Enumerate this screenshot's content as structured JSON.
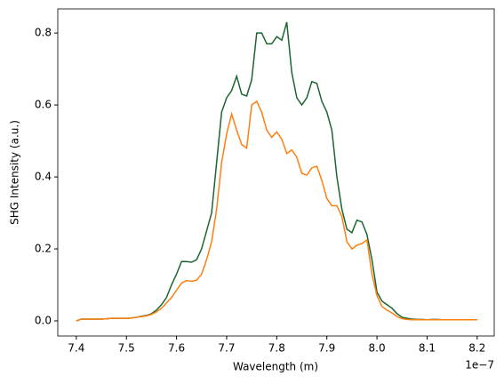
{
  "chart_data": {
    "type": "line",
    "x_label": "Wavelength (m)",
    "y_label": "SHG Intensity (a.u.)",
    "x_offset_label": "1e−7",
    "x": [
      7.4,
      7.41,
      7.42,
      7.43,
      7.44,
      7.45,
      7.46,
      7.47,
      7.48,
      7.49,
      7.5,
      7.51,
      7.52,
      7.53,
      7.54,
      7.55,
      7.56,
      7.57,
      7.58,
      7.59,
      7.6,
      7.61,
      7.62,
      7.63,
      7.64,
      7.65,
      7.66,
      7.67,
      7.68,
      7.69,
      7.7,
      7.71,
      7.72,
      7.73,
      7.74,
      7.75,
      7.76,
      7.77,
      7.78,
      7.79,
      7.8,
      7.81,
      7.82,
      7.83,
      7.84,
      7.85,
      7.86,
      7.87,
      7.88,
      7.89,
      7.9,
      7.91,
      7.92,
      7.93,
      7.94,
      7.95,
      7.96,
      7.97,
      7.98,
      7.99,
      8.0,
      8.01,
      8.02,
      8.03,
      8.04,
      8.05,
      8.06,
      8.07,
      8.08,
      8.09,
      8.1,
      8.11,
      8.12,
      8.13,
      8.14,
      8.15,
      8.16,
      8.17,
      8.18,
      8.19,
      8.2
    ],
    "series": [
      {
        "color": "#1b6630",
        "values": [
          0,
          0.005,
          0.005,
          0.005,
          0.005,
          0.005,
          0.006,
          0.007,
          0.007,
          0.007,
          0.007,
          0.008,
          0.01,
          0.013,
          0.015,
          0.02,
          0.03,
          0.045,
          0.065,
          0.1,
          0.13,
          0.165,
          0.165,
          0.163,
          0.17,
          0.2,
          0.25,
          0.3,
          0.44,
          0.58,
          0.62,
          0.64,
          0.68,
          0.63,
          0.625,
          0.67,
          0.8,
          0.8,
          0.77,
          0.77,
          0.79,
          0.78,
          0.83,
          0.69,
          0.62,
          0.6,
          0.62,
          0.665,
          0.66,
          0.61,
          0.58,
          0.53,
          0.4,
          0.31,
          0.255,
          0.245,
          0.28,
          0.275,
          0.24,
          0.17,
          0.08,
          0.055,
          0.045,
          0.035,
          0.02,
          0.01,
          0.007,
          0.005,
          0.004,
          0.004,
          0.003,
          0.004,
          0.004,
          0.003,
          0.003,
          0.003,
          0.003,
          0.003,
          0.003,
          0.003,
          0.003
        ]
      },
      {
        "color": "#ff7f0e",
        "values": [
          0,
          0.005,
          0.005,
          0.005,
          0.005,
          0.005,
          0.006,
          0.007,
          0.007,
          0.007,
          0.007,
          0.008,
          0.01,
          0.012,
          0.014,
          0.018,
          0.025,
          0.035,
          0.05,
          0.065,
          0.085,
          0.105,
          0.112,
          0.11,
          0.113,
          0.13,
          0.17,
          0.22,
          0.31,
          0.44,
          0.52,
          0.575,
          0.53,
          0.49,
          0.48,
          0.6,
          0.61,
          0.58,
          0.53,
          0.51,
          0.525,
          0.505,
          0.465,
          0.475,
          0.455,
          0.41,
          0.405,
          0.425,
          0.43,
          0.39,
          0.34,
          0.32,
          0.32,
          0.29,
          0.22,
          0.2,
          0.21,
          0.215,
          0.225,
          0.13,
          0.07,
          0.04,
          0.03,
          0.022,
          0.012,
          0.006,
          0.004,
          0.003,
          0.003,
          0.003,
          0.003,
          0.003,
          0.003,
          0.003,
          0.003,
          0.003,
          0.003,
          0.003,
          0.003,
          0.003,
          0.003
        ]
      }
    ],
    "xlim": [
      7.363,
      8.234
    ],
    "xticks": [
      7.4,
      7.5,
      7.6,
      7.7,
      7.8,
      7.9,
      {
        "value": 8,
        "label": "8.0"
      },
      8.1,
      8.2
    ],
    "ylim": [
      -0.042,
      0.867
    ],
    "yticks": [
      {
        "value": 0,
        "label": "0.0"
      },
      0.2,
      0.4,
      0.6,
      0.8
    ],
    "grid": false
  }
}
